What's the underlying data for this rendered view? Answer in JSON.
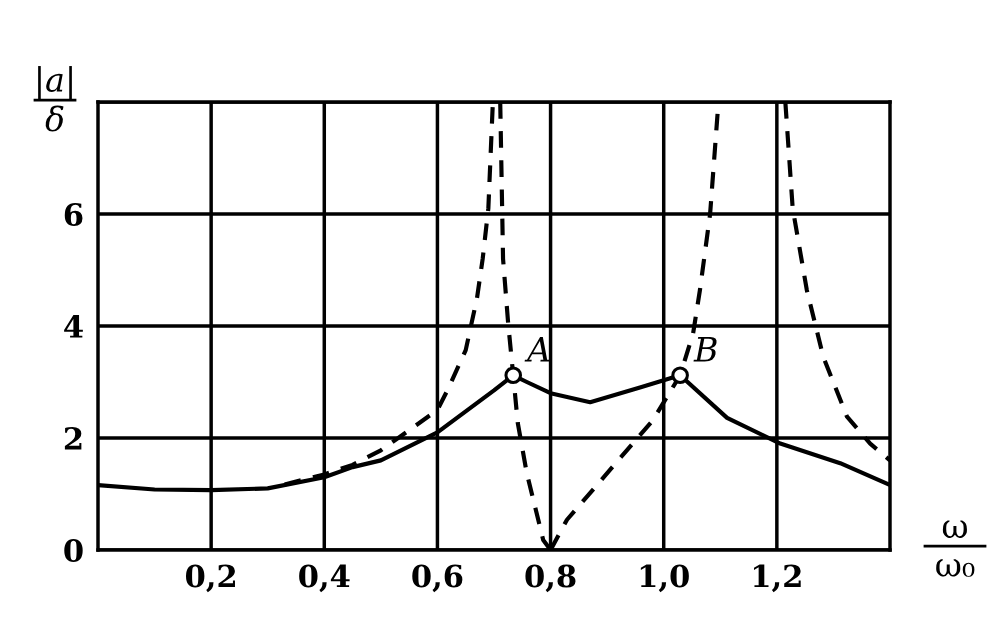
{
  "chart_data": {
    "type": "line",
    "xlabel": "ω\nω₀",
    "ylabel": "|a|\nδ",
    "xlim": [
      0,
      1.4
    ],
    "ylim": [
      0,
      8
    ],
    "xticks": [
      {
        "value": 0.2,
        "label": "0,2"
      },
      {
        "value": 0.4,
        "label": "0,4"
      },
      {
        "value": 0.6,
        "label": "0,6"
      },
      {
        "value": 0.8,
        "label": "0,8"
      },
      {
        "value": 1.0,
        "label": "1,0"
      },
      {
        "value": 1.2,
        "label": "1,2"
      }
    ],
    "yticks": [
      0,
      2,
      4,
      6,
      {
        "value": 8,
        "label": null
      }
    ],
    "grid": true,
    "series": [
      {
        "color": "#000000",
        "line_style": "solid",
        "x": [
          0,
          0.1,
          0.2,
          0.3,
          0.4,
          0.45,
          0.5,
          0.6,
          0.7,
          0.734,
          0.758,
          0.8,
          0.87,
          0.958,
          1.029,
          1.112,
          1.206,
          1.312,
          1.4
        ],
        "values": [
          1.16,
          1.08,
          1.07,
          1.1,
          1.3,
          1.48,
          1.6,
          2.1,
          2.85,
          3.12,
          3.0,
          2.8,
          2.64,
          2.9,
          3.12,
          2.36,
          1.9,
          1.55,
          1.16
        ]
      },
      {
        "color": "#000000",
        "line_style": "dashed",
        "x": [
          0.33,
          0.4,
          0.45,
          0.5,
          0.55,
          0.6,
          0.62,
          0.65,
          0.67,
          0.68,
          0.69,
          0.698
        ],
        "values": [
          1.17,
          1.35,
          1.52,
          1.78,
          2.14,
          2.5,
          2.9,
          3.57,
          4.5,
          5.2,
          6.1,
          8
        ]
      },
      {
        "color": "#000000",
        "line_style": "dashed",
        "x": [
          0.711,
          0.716,
          0.725,
          0.734,
          0.742,
          0.758,
          0.787,
          0.8
        ],
        "values": [
          8,
          5.2,
          4.05,
          3.12,
          2.27,
          1.37,
          0.18,
          0
        ]
      },
      {
        "color": "#000000",
        "line_style": "dashed",
        "x": [
          0.8,
          0.829,
          0.905,
          0.981,
          1.029,
          1.052,
          1.064,
          1.082,
          1.096,
          1.1
        ],
        "values": [
          0,
          0.54,
          1.43,
          2.32,
          3.12,
          3.87,
          4.64,
          6.0,
          7.9,
          8
        ]
      },
      {
        "color": "#000000",
        "line_style": "dashed",
        "x": [
          1.215,
          1.228,
          1.253,
          1.282,
          1.324,
          1.365,
          1.4
        ],
        "values": [
          8,
          6.1,
          4.64,
          3.45,
          2.38,
          1.9,
          1.6
        ]
      },
      {
        "type": "scatter",
        "color": "#000000",
        "marker": "circle",
        "x": [
          0.734,
          1.029
        ],
        "values": [
          3.12,
          3.12
        ]
      }
    ],
    "annotations": [
      {
        "text": "A",
        "x": 0.734,
        "y": 3.12
      },
      {
        "text": "B",
        "x": 1.029,
        "y": 3.12
      }
    ]
  }
}
